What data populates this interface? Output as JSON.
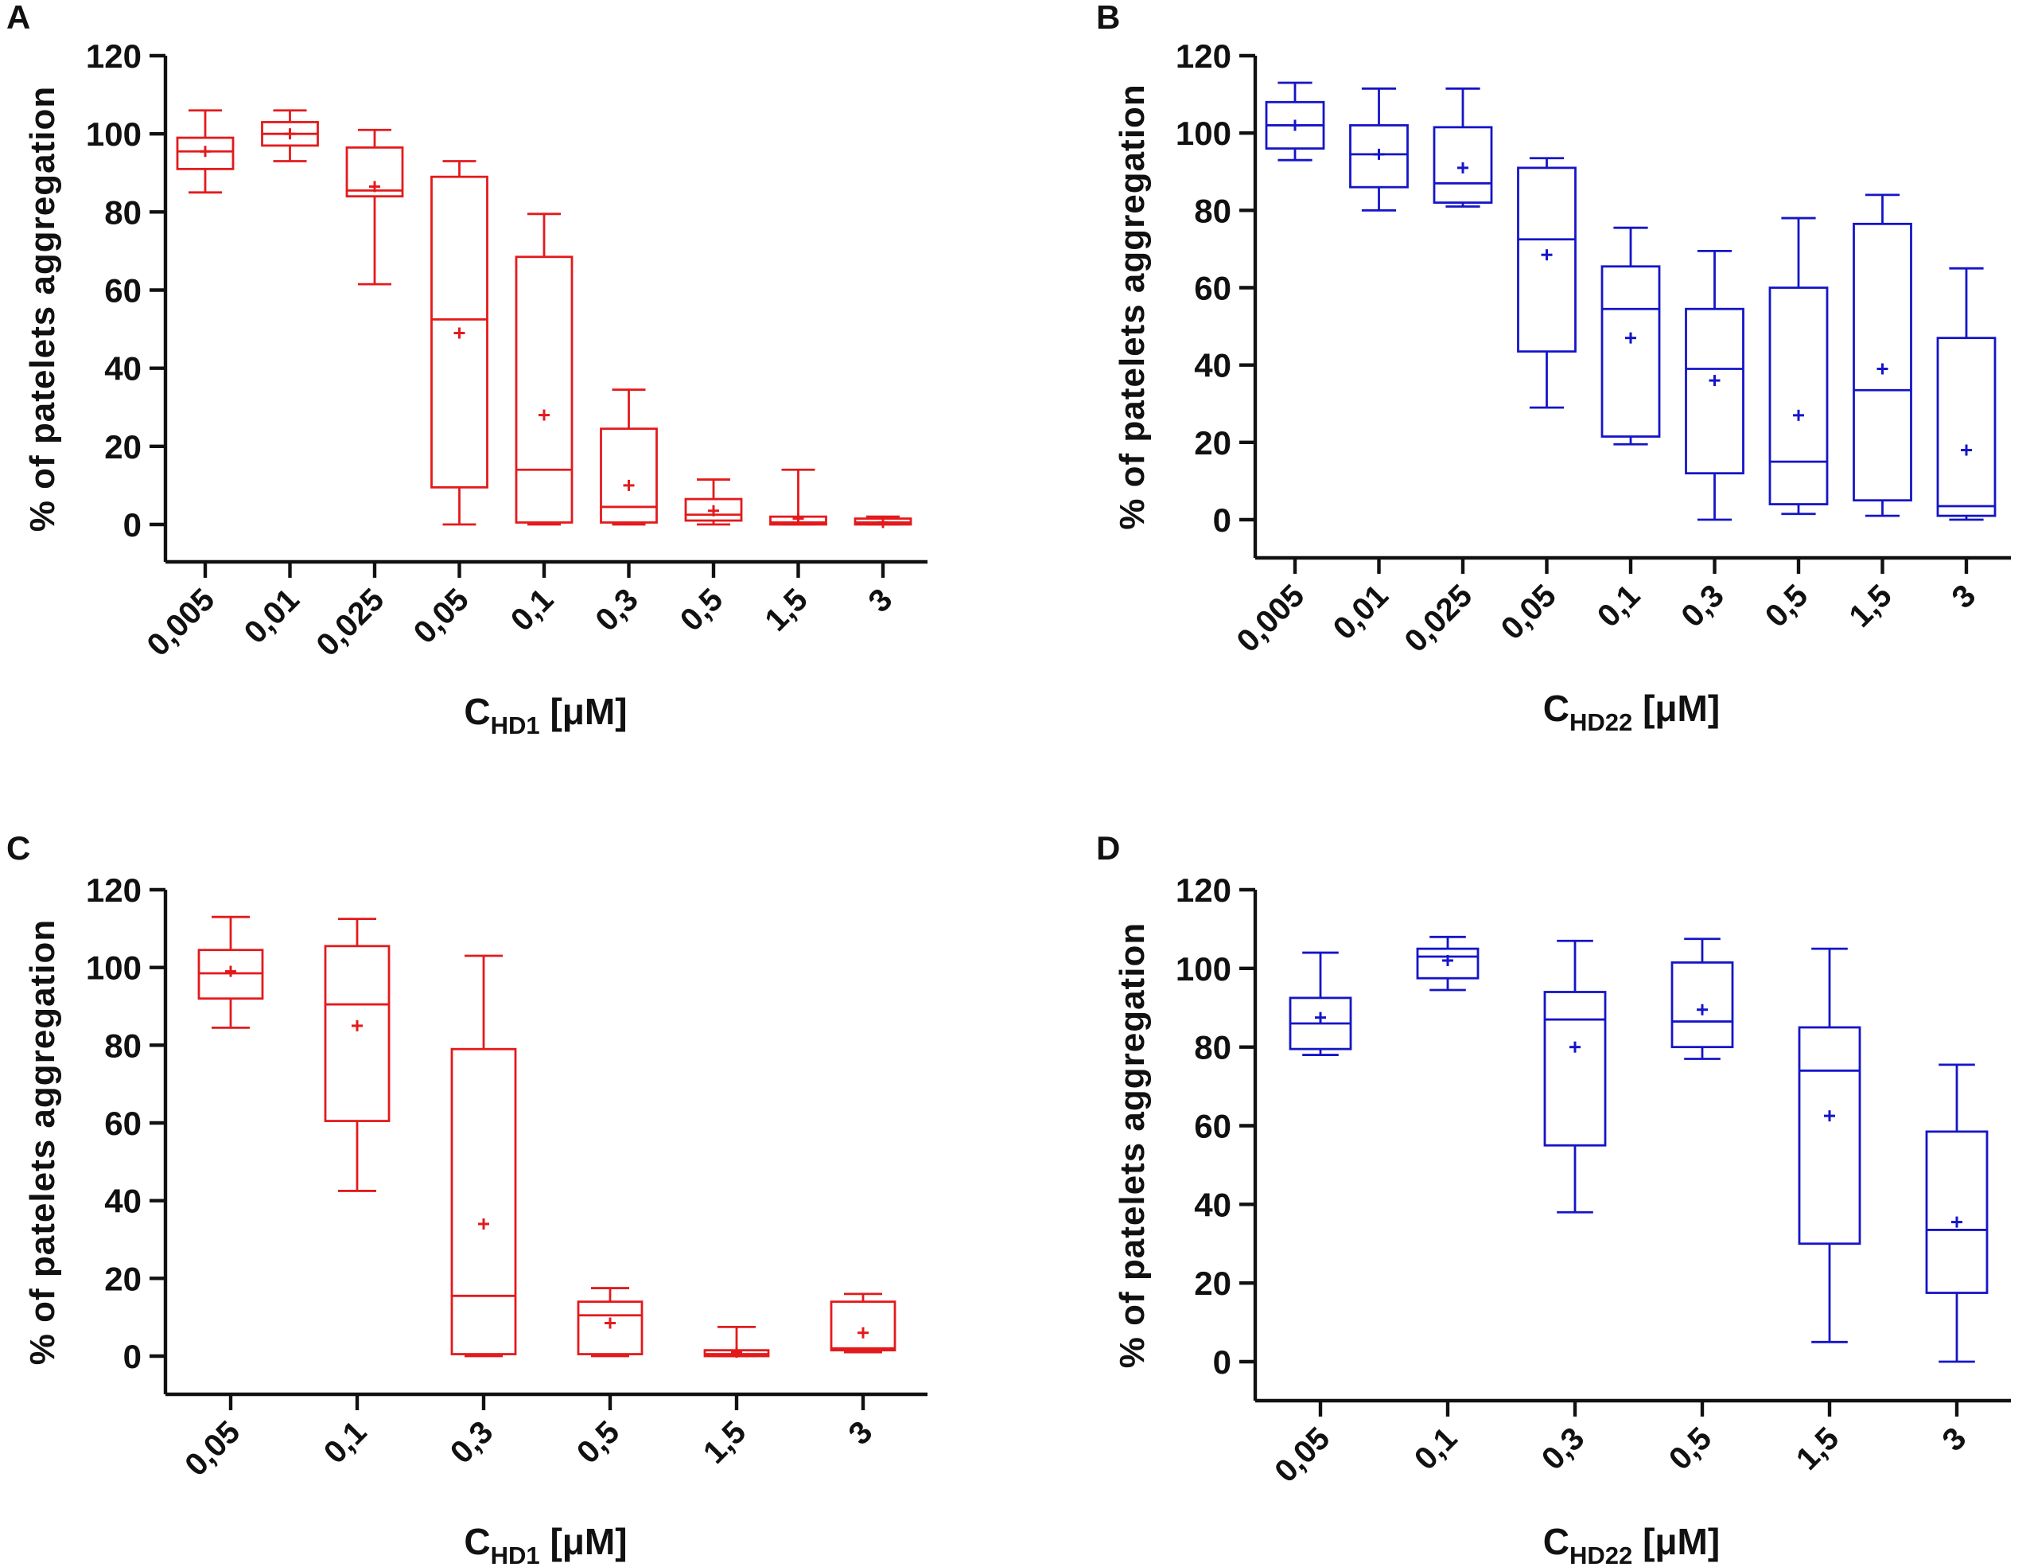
{
  "figure": {
    "colors": {
      "red": "#e31a1c",
      "blue": "#1515c8",
      "axis": "#111111"
    }
  },
  "chart_data": [
    {
      "panel": "A",
      "type": "box",
      "color": "red",
      "ylabel": "% of patelets aggregation",
      "xlabel": {
        "main": "C",
        "sub": "HD1",
        "unit": "[μM]"
      },
      "ylim": [
        -10,
        120
      ],
      "yticks": [
        0,
        20,
        40,
        60,
        80,
        100,
        120
      ],
      "categories": [
        "0,005",
        "0,01",
        "0,025",
        "0,05",
        "0,1",
        "0,3",
        "0,5",
        "1,5",
        "3"
      ],
      "boxes": [
        {
          "min": 85,
          "q1": 91,
          "median": 95.5,
          "q3": 99,
          "max": 106,
          "mean": 95.5
        },
        {
          "min": 93,
          "q1": 97,
          "median": 100,
          "q3": 103,
          "max": 106,
          "mean": 100
        },
        {
          "min": 61.5,
          "q1": 84,
          "median": 85.5,
          "q3": 96.5,
          "max": 101,
          "mean": 86.5
        },
        {
          "min": 0,
          "q1": 9.5,
          "median": 52.5,
          "q3": 89,
          "max": 93,
          "mean": 49
        },
        {
          "min": 0,
          "q1": 0.5,
          "median": 14,
          "q3": 68.5,
          "max": 79.5,
          "mean": 28
        },
        {
          "min": 0,
          "q1": 0.5,
          "median": 4.5,
          "q3": 24.5,
          "max": 34.5,
          "mean": 10
        },
        {
          "min": 0,
          "q1": 1,
          "median": 2.5,
          "q3": 6.5,
          "max": 11.5,
          "mean": 3.5
        },
        {
          "min": 0,
          "q1": 0,
          "median": 0.5,
          "q3": 2,
          "max": 14,
          "mean": 1.5
        },
        {
          "min": 0,
          "q1": 0,
          "median": 0.5,
          "q3": 1.5,
          "max": 2,
          "mean": 0.5
        }
      ]
    },
    {
      "panel": "B",
      "type": "box",
      "color": "blue",
      "ylabel": "% of patelets aggregation",
      "xlabel": {
        "main": "C",
        "sub": "HD22",
        "unit": "[μM]"
      },
      "ylim": [
        -10,
        120
      ],
      "yticks": [
        0,
        20,
        40,
        60,
        80,
        100,
        120
      ],
      "categories": [
        "0,005",
        "0,01",
        "0,025",
        "0,05",
        "0,1",
        "0,3",
        "0,5",
        "1,5",
        "3"
      ],
      "boxes": [
        {
          "min": 93,
          "q1": 96,
          "median": 102,
          "q3": 108,
          "max": 113,
          "mean": 102
        },
        {
          "min": 80,
          "q1": 86,
          "median": 94.5,
          "q3": 102,
          "max": 111.5,
          "mean": 94.5
        },
        {
          "min": 81,
          "q1": 82,
          "median": 87,
          "q3": 101.5,
          "max": 111.5,
          "mean": 91
        },
        {
          "min": 29,
          "q1": 43.5,
          "median": 72.5,
          "q3": 91,
          "max": 93.5,
          "mean": 68.5
        },
        {
          "min": 19.5,
          "q1": 21.5,
          "median": 54.5,
          "q3": 65.5,
          "max": 75.5,
          "mean": 47
        },
        {
          "min": 0,
          "q1": 12,
          "median": 39,
          "q3": 54.5,
          "max": 69.5,
          "mean": 36
        },
        {
          "min": 1.5,
          "q1": 4,
          "median": 15,
          "q3": 60,
          "max": 78,
          "mean": 27
        },
        {
          "min": 1,
          "q1": 5,
          "median": 33.5,
          "q3": 76.5,
          "max": 84,
          "mean": 39
        },
        {
          "min": 0,
          "q1": 1,
          "median": 3.5,
          "q3": 47,
          "max": 65,
          "mean": 18
        }
      ]
    },
    {
      "panel": "C",
      "type": "box",
      "color": "red",
      "ylabel": "% of patelets aggregation",
      "xlabel": {
        "main": "C",
        "sub": "HD1",
        "unit": "[μM]"
      },
      "ylim": [
        -10,
        120
      ],
      "yticks": [
        0,
        20,
        40,
        60,
        80,
        100,
        120
      ],
      "categories": [
        "0,05",
        "0,1",
        "0,3",
        "0,5",
        "1,5",
        "3"
      ],
      "boxes": [
        {
          "min": 84.5,
          "q1": 92,
          "median": 98.5,
          "q3": 104.5,
          "max": 113,
          "mean": 99
        },
        {
          "min": 42.5,
          "q1": 60.5,
          "median": 90.5,
          "q3": 105.5,
          "max": 112.5,
          "mean": 85
        },
        {
          "min": 0,
          "q1": 0.5,
          "median": 15.5,
          "q3": 79,
          "max": 103,
          "mean": 34
        },
        {
          "min": 0,
          "q1": 0.5,
          "median": 10.5,
          "q3": 14,
          "max": 17.5,
          "mean": 8.5
        },
        {
          "min": 0,
          "q1": 0,
          "median": 0.5,
          "q3": 1.5,
          "max": 7.5,
          "mean": 1
        },
        {
          "min": 1,
          "q1": 1.5,
          "median": 2,
          "q3": 14,
          "max": 16,
          "mean": 6
        }
      ]
    },
    {
      "panel": "D",
      "type": "box",
      "color": "blue",
      "ylabel": "% of patelets aggregation",
      "xlabel": {
        "main": "C",
        "sub": "HD22",
        "unit": "[μM]"
      },
      "ylim": [
        -10,
        120
      ],
      "yticks": [
        0,
        20,
        40,
        60,
        80,
        100,
        120
      ],
      "categories": [
        "0,05",
        "0,1",
        "0,3",
        "0,5",
        "1,5",
        "3"
      ],
      "boxes": [
        {
          "min": 78,
          "q1": 79.5,
          "median": 86,
          "q3": 92.5,
          "max": 104,
          "mean": 87.5
        },
        {
          "min": 94.5,
          "q1": 97.5,
          "median": 103,
          "q3": 105,
          "max": 108,
          "mean": 102
        },
        {
          "min": 38,
          "q1": 55,
          "median": 87,
          "q3": 94,
          "max": 107,
          "mean": 80
        },
        {
          "min": 77,
          "q1": 80,
          "median": 86.5,
          "q3": 101.5,
          "max": 107.5,
          "mean": 89.5
        },
        {
          "min": 5,
          "q1": 30,
          "median": 74,
          "q3": 85,
          "max": 105,
          "mean": 62.5
        },
        {
          "min": 0,
          "q1": 17.5,
          "median": 33.5,
          "q3": 58.5,
          "max": 75.5,
          "mean": 35.5
        }
      ]
    }
  ]
}
